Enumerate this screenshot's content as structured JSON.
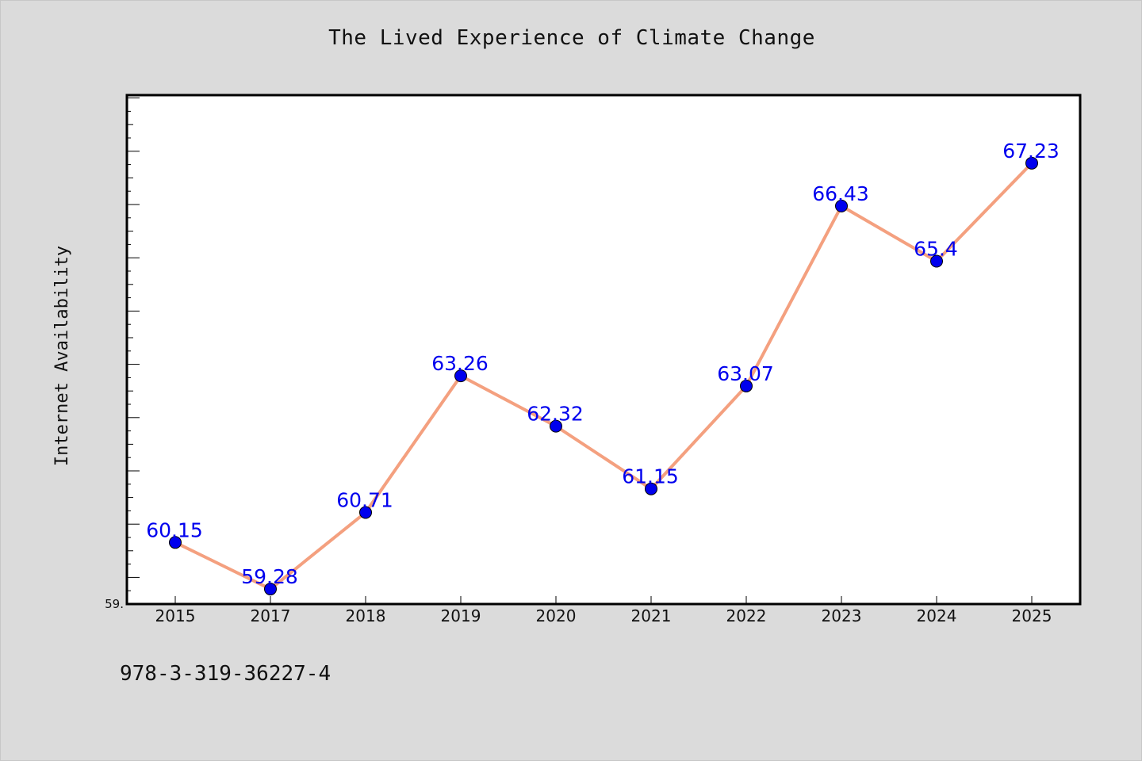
{
  "chart_data": {
    "type": "line",
    "title": "The Lived Experience of Climate Change",
    "xlabel": "",
    "ylabel": "Internet Availability",
    "categories": [
      "2015",
      "2017",
      "2018",
      "2019",
      "2020",
      "2021",
      "2022",
      "2023",
      "2024",
      "2025"
    ],
    "series": [
      {
        "values": [
          60.15,
          59.28,
          60.71,
          63.26,
          62.32,
          61.15,
          63.07,
          66.43,
          65.4,
          67.23
        ],
        "data_labels": [
          "60.15",
          "59.28",
          "60.71",
          "63.26",
          "62.32",
          "61.15",
          "63.07",
          "66.43",
          "65.4",
          "67.23"
        ]
      }
    ],
    "ylim": [
      59.0,
      68.5
    ],
    "ytick_labels": [
      "59."
    ],
    "grid": false,
    "line_color": "#f4a07f",
    "marker_color": "#0000ee",
    "label_color": "#0000ee"
  },
  "footer": {
    "code": "978-3-319-36227-4"
  }
}
